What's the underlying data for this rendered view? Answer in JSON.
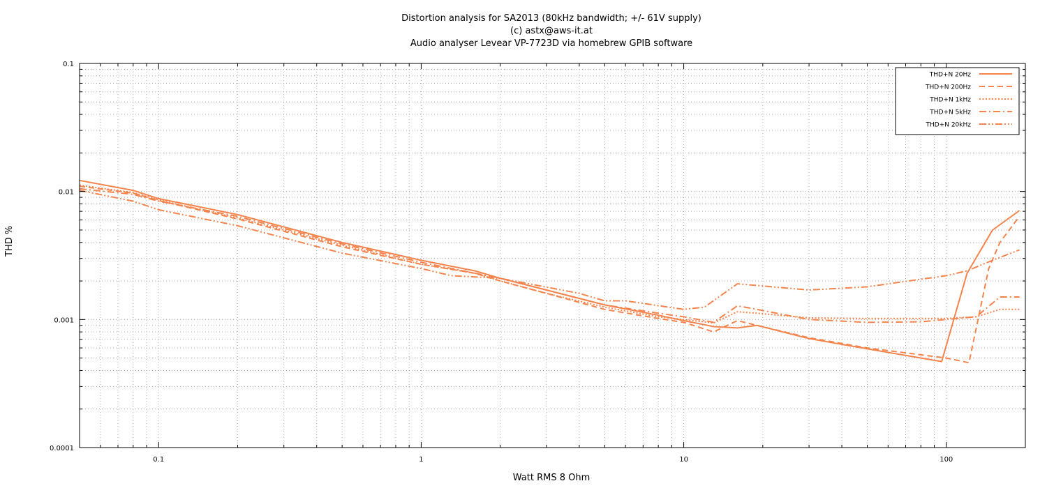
{
  "chart_data": {
    "type": "line",
    "title": "Distortion analysis for SA2013 (80kHz bandwidth; +/- 61V supply)",
    "subtitle": "(c) astx@aws-it.at",
    "subtitle2": "Audio analyser Levear VP-7723D via homebrew GPIB software",
    "xlabel": "Watt RMS 8 Ohm",
    "ylabel": "THD %",
    "xscale": "log",
    "yscale": "log",
    "xlim": [
      0.05,
      200
    ],
    "ylim": [
      0.0001,
      0.1
    ],
    "grid": true,
    "legend_position": "top-right",
    "xticks": [
      {
        "value": 0.1,
        "label": "0.1"
      },
      {
        "value": 1,
        "label": "1"
      },
      {
        "value": 10,
        "label": "10"
      },
      {
        "value": 100,
        "label": "100"
      }
    ],
    "yticks": [
      {
        "value": 0.0001,
        "label": "0.0001"
      },
      {
        "value": 0.001,
        "label": "0.001"
      },
      {
        "value": 0.01,
        "label": "0.01"
      },
      {
        "value": 0.1,
        "label": "0.1"
      }
    ],
    "line_color": "#f4844c",
    "series": [
      {
        "name": "THD+N 20Hz",
        "dash": "solid",
        "x": [
          0.05,
          0.08,
          0.1,
          0.2,
          0.5,
          1,
          1.6,
          2,
          3,
          5,
          8,
          10,
          13,
          16,
          19,
          30,
          50,
          96,
          120,
          150,
          190
        ],
        "y": [
          0.0122,
          0.0102,
          0.0088,
          0.0066,
          0.004,
          0.0029,
          0.0024,
          0.0021,
          0.0017,
          0.0013,
          0.00108,
          0.00098,
          0.00088,
          0.00086,
          0.0009,
          0.00071,
          0.00059,
          0.00047,
          0.0023,
          0.005,
          0.0071
        ]
      },
      {
        "name": "THD+N 200Hz",
        "dash": "dashed",
        "x": [
          0.05,
          0.08,
          0.1,
          0.2,
          0.5,
          1,
          1.6,
          2,
          3,
          5,
          8,
          10,
          13,
          16,
          19,
          30,
          50,
          100,
          122,
          145,
          160,
          190
        ],
        "y": [
          0.011,
          0.0097,
          0.0085,
          0.0061,
          0.0037,
          0.0027,
          0.0023,
          0.002,
          0.0016,
          0.0012,
          0.00102,
          0.00095,
          0.0008,
          0.00098,
          0.0009,
          0.00072,
          0.0006,
          0.0005,
          0.00046,
          0.0025,
          0.004,
          0.0064
        ]
      },
      {
        "name": "THD+N 1kHz",
        "dash": "dotted",
        "x": [
          0.05,
          0.08,
          0.1,
          0.2,
          0.5,
          1,
          1.6,
          2,
          3,
          5,
          8,
          10,
          13,
          16,
          19,
          30,
          50,
          80,
          100,
          130,
          160,
          190
        ],
        "y": [
          0.0112,
          0.0098,
          0.0086,
          0.0062,
          0.0038,
          0.0027,
          0.0023,
          0.002,
          0.0016,
          0.00125,
          0.00105,
          0.001,
          0.00094,
          0.00115,
          0.00112,
          0.00103,
          0.00102,
          0.00102,
          0.00102,
          0.00105,
          0.0012,
          0.0012
        ]
      },
      {
        "name": "THD+N 5kHz",
        "dash": "dash-dot",
        "x": [
          0.05,
          0.08,
          0.1,
          0.2,
          0.5,
          1,
          1.6,
          2,
          3,
          5,
          8,
          10,
          13,
          16,
          19,
          30,
          50,
          80,
          100,
          130,
          160,
          190
        ],
        "y": [
          0.0105,
          0.0095,
          0.0084,
          0.0064,
          0.0039,
          0.0028,
          0.0023,
          0.0021,
          0.0017,
          0.0013,
          0.00112,
          0.00105,
          0.00095,
          0.00128,
          0.0012,
          0.001,
          0.00095,
          0.00096,
          0.001,
          0.00105,
          0.0015,
          0.0015
        ]
      },
      {
        "name": "THD+N 20kHz",
        "dash": "dash-dot-dot",
        "x": [
          0.05,
          0.08,
          0.1,
          0.2,
          0.5,
          1,
          1.3,
          2,
          4,
          5,
          6,
          10,
          12,
          16,
          30,
          50,
          100,
          120,
          150,
          190
        ],
        "y": [
          0.0102,
          0.0084,
          0.0072,
          0.0054,
          0.0033,
          0.0025,
          0.0022,
          0.0021,
          0.0016,
          0.0014,
          0.0014,
          0.0012,
          0.00125,
          0.0019,
          0.0017,
          0.0018,
          0.0022,
          0.0024,
          0.0029,
          0.0035
        ]
      }
    ]
  }
}
